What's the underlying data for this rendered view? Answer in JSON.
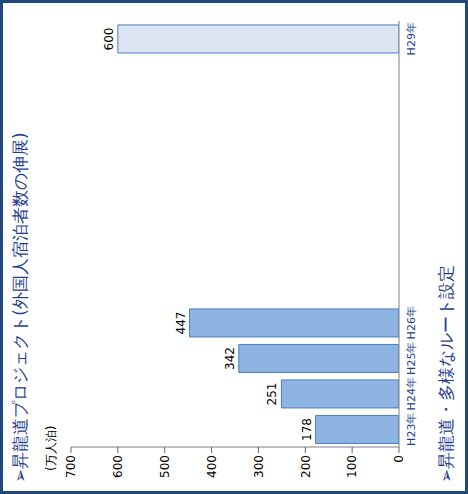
{
  "chart_data": {
    "type": "bar",
    "title": "➢昇龍道プロジェクト(外国人宿泊者数の伸展)",
    "y_label": "(万人泊)",
    "annotations": [
      "➢昇龍道・多様なルート設定"
    ],
    "categories": [
      "H23年",
      "H24年",
      "H25年",
      "H26年",
      null,
      null,
      null,
      null,
      null,
      null,
      null,
      "H29年"
    ],
    "values": [
      178,
      251,
      342,
      447,
      null,
      null,
      null,
      null,
      null,
      null,
      null,
      600
    ],
    "colors": [
      "#8eb4e3",
      "#8eb4e3",
      "#8eb4e3",
      "#8eb4e3",
      "#dbe5f1"
    ],
    "ylim": [
      0,
      700
    ],
    "yticks": [
      0,
      100,
      200,
      300,
      400,
      500,
      600,
      700
    ],
    "grid": false,
    "data_labels": true
  }
}
